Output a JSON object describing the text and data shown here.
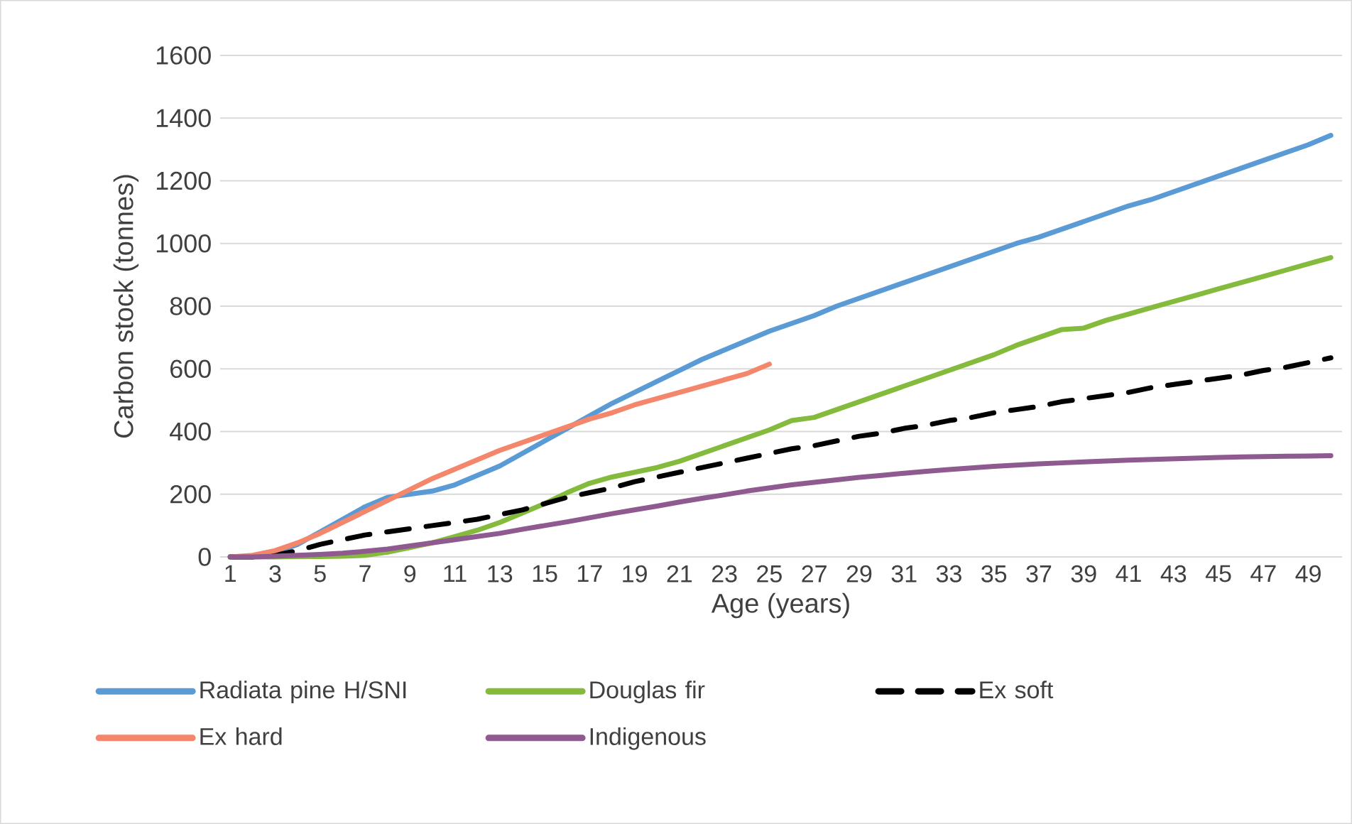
{
  "chart_data": {
    "type": "line",
    "xlabel": "Age (years)",
    "ylabel": "Carbon stock (tonnes)",
    "categories": [
      "1",
      null,
      "3",
      null,
      "5",
      null,
      "7",
      null,
      "9",
      null,
      "11",
      null,
      "13",
      null,
      "15",
      null,
      "17",
      null,
      "19",
      null,
      "21",
      null,
      "23",
      null,
      "25",
      null,
      "27",
      null,
      "29",
      null,
      "31",
      null,
      "33",
      null,
      "35",
      null,
      "37",
      null,
      "39",
      null,
      "41",
      null,
      "43",
      null,
      "45",
      null,
      "47",
      null,
      "49",
      null
    ],
    "ylim": [
      0,
      1600
    ],
    "yticks": [
      0,
      200,
      400,
      600,
      800,
      1000,
      1200,
      1400,
      1600
    ],
    "grid": "y",
    "legend": "bottom",
    "line_style": "solid",
    "series": [
      {
        "name": "Radiata pine H/SNI",
        "color": "#5b9bd5",
        "values": [
          0,
          2,
          15,
          40,
          80,
          120,
          160,
          190,
          200,
          210,
          230,
          260,
          290,
          330,
          370,
          410,
          450,
          490,
          525,
          560,
          595,
          630,
          660,
          690,
          720,
          745,
          770,
          800,
          825,
          850,
          875,
          900,
          925,
          950,
          975,
          1000,
          1020,
          1045,
          1070,
          1095,
          1120,
          1140,
          1165,
          1190,
          1215,
          1240,
          1265,
          1290,
          1315,
          1345
        ]
      },
      {
        "name": "Douglas fir",
        "color": "#84bb3c",
        "values": [
          0,
          0,
          0,
          1,
          1,
          2,
          5,
          15,
          30,
          45,
          65,
          85,
          110,
          140,
          170,
          205,
          235,
          255,
          270,
          285,
          305,
          330,
          355,
          380,
          405,
          435,
          445,
          470,
          495,
          520,
          545,
          570,
          595,
          620,
          645,
          675,
          700,
          725,
          730,
          755,
          775,
          795,
          815,
          835,
          855,
          875,
          895,
          915,
          935,
          955
        ]
      },
      {
        "name": "Ex soft",
        "color": "#000000",
        "line_style": "dashed",
        "values": [
          0,
          0,
          5,
          20,
          40,
          55,
          70,
          80,
          90,
          100,
          110,
          120,
          135,
          150,
          170,
          190,
          205,
          220,
          240,
          255,
          270,
          285,
          300,
          315,
          330,
          345,
          355,
          370,
          385,
          395,
          410,
          420,
          435,
          445,
          460,
          470,
          480,
          495,
          505,
          515,
          525,
          540,
          550,
          560,
          570,
          580,
          595,
          605,
          620,
          635
        ]
      },
      {
        "name": "Ex hard",
        "color": "#f4876b",
        "values": [
          0,
          5,
          20,
          45,
          75,
          110,
          145,
          180,
          215,
          250,
          280,
          310,
          340,
          365,
          390,
          415,
          440,
          460,
          485,
          505,
          525,
          545,
          565,
          585,
          615,
          null,
          null,
          null,
          null,
          null,
          null,
          null,
          null,
          null,
          null,
          null,
          null,
          null,
          null,
          null,
          null,
          null,
          null,
          null,
          null,
          null,
          null,
          null,
          null,
          null
        ]
      },
      {
        "name": "Indigenous",
        "color": "#8e5a8f",
        "values": [
          0,
          0,
          2,
          5,
          8,
          12,
          18,
          25,
          35,
          45,
          55,
          65,
          75,
          88,
          100,
          112,
          125,
          138,
          150,
          162,
          175,
          187,
          198,
          210,
          220,
          230,
          238,
          246,
          254,
          260,
          267,
          273,
          279,
          284,
          289,
          293,
          297,
          300,
          303,
          306,
          309,
          311,
          313,
          315,
          317,
          319,
          320,
          321,
          322,
          323
        ]
      }
    ]
  }
}
